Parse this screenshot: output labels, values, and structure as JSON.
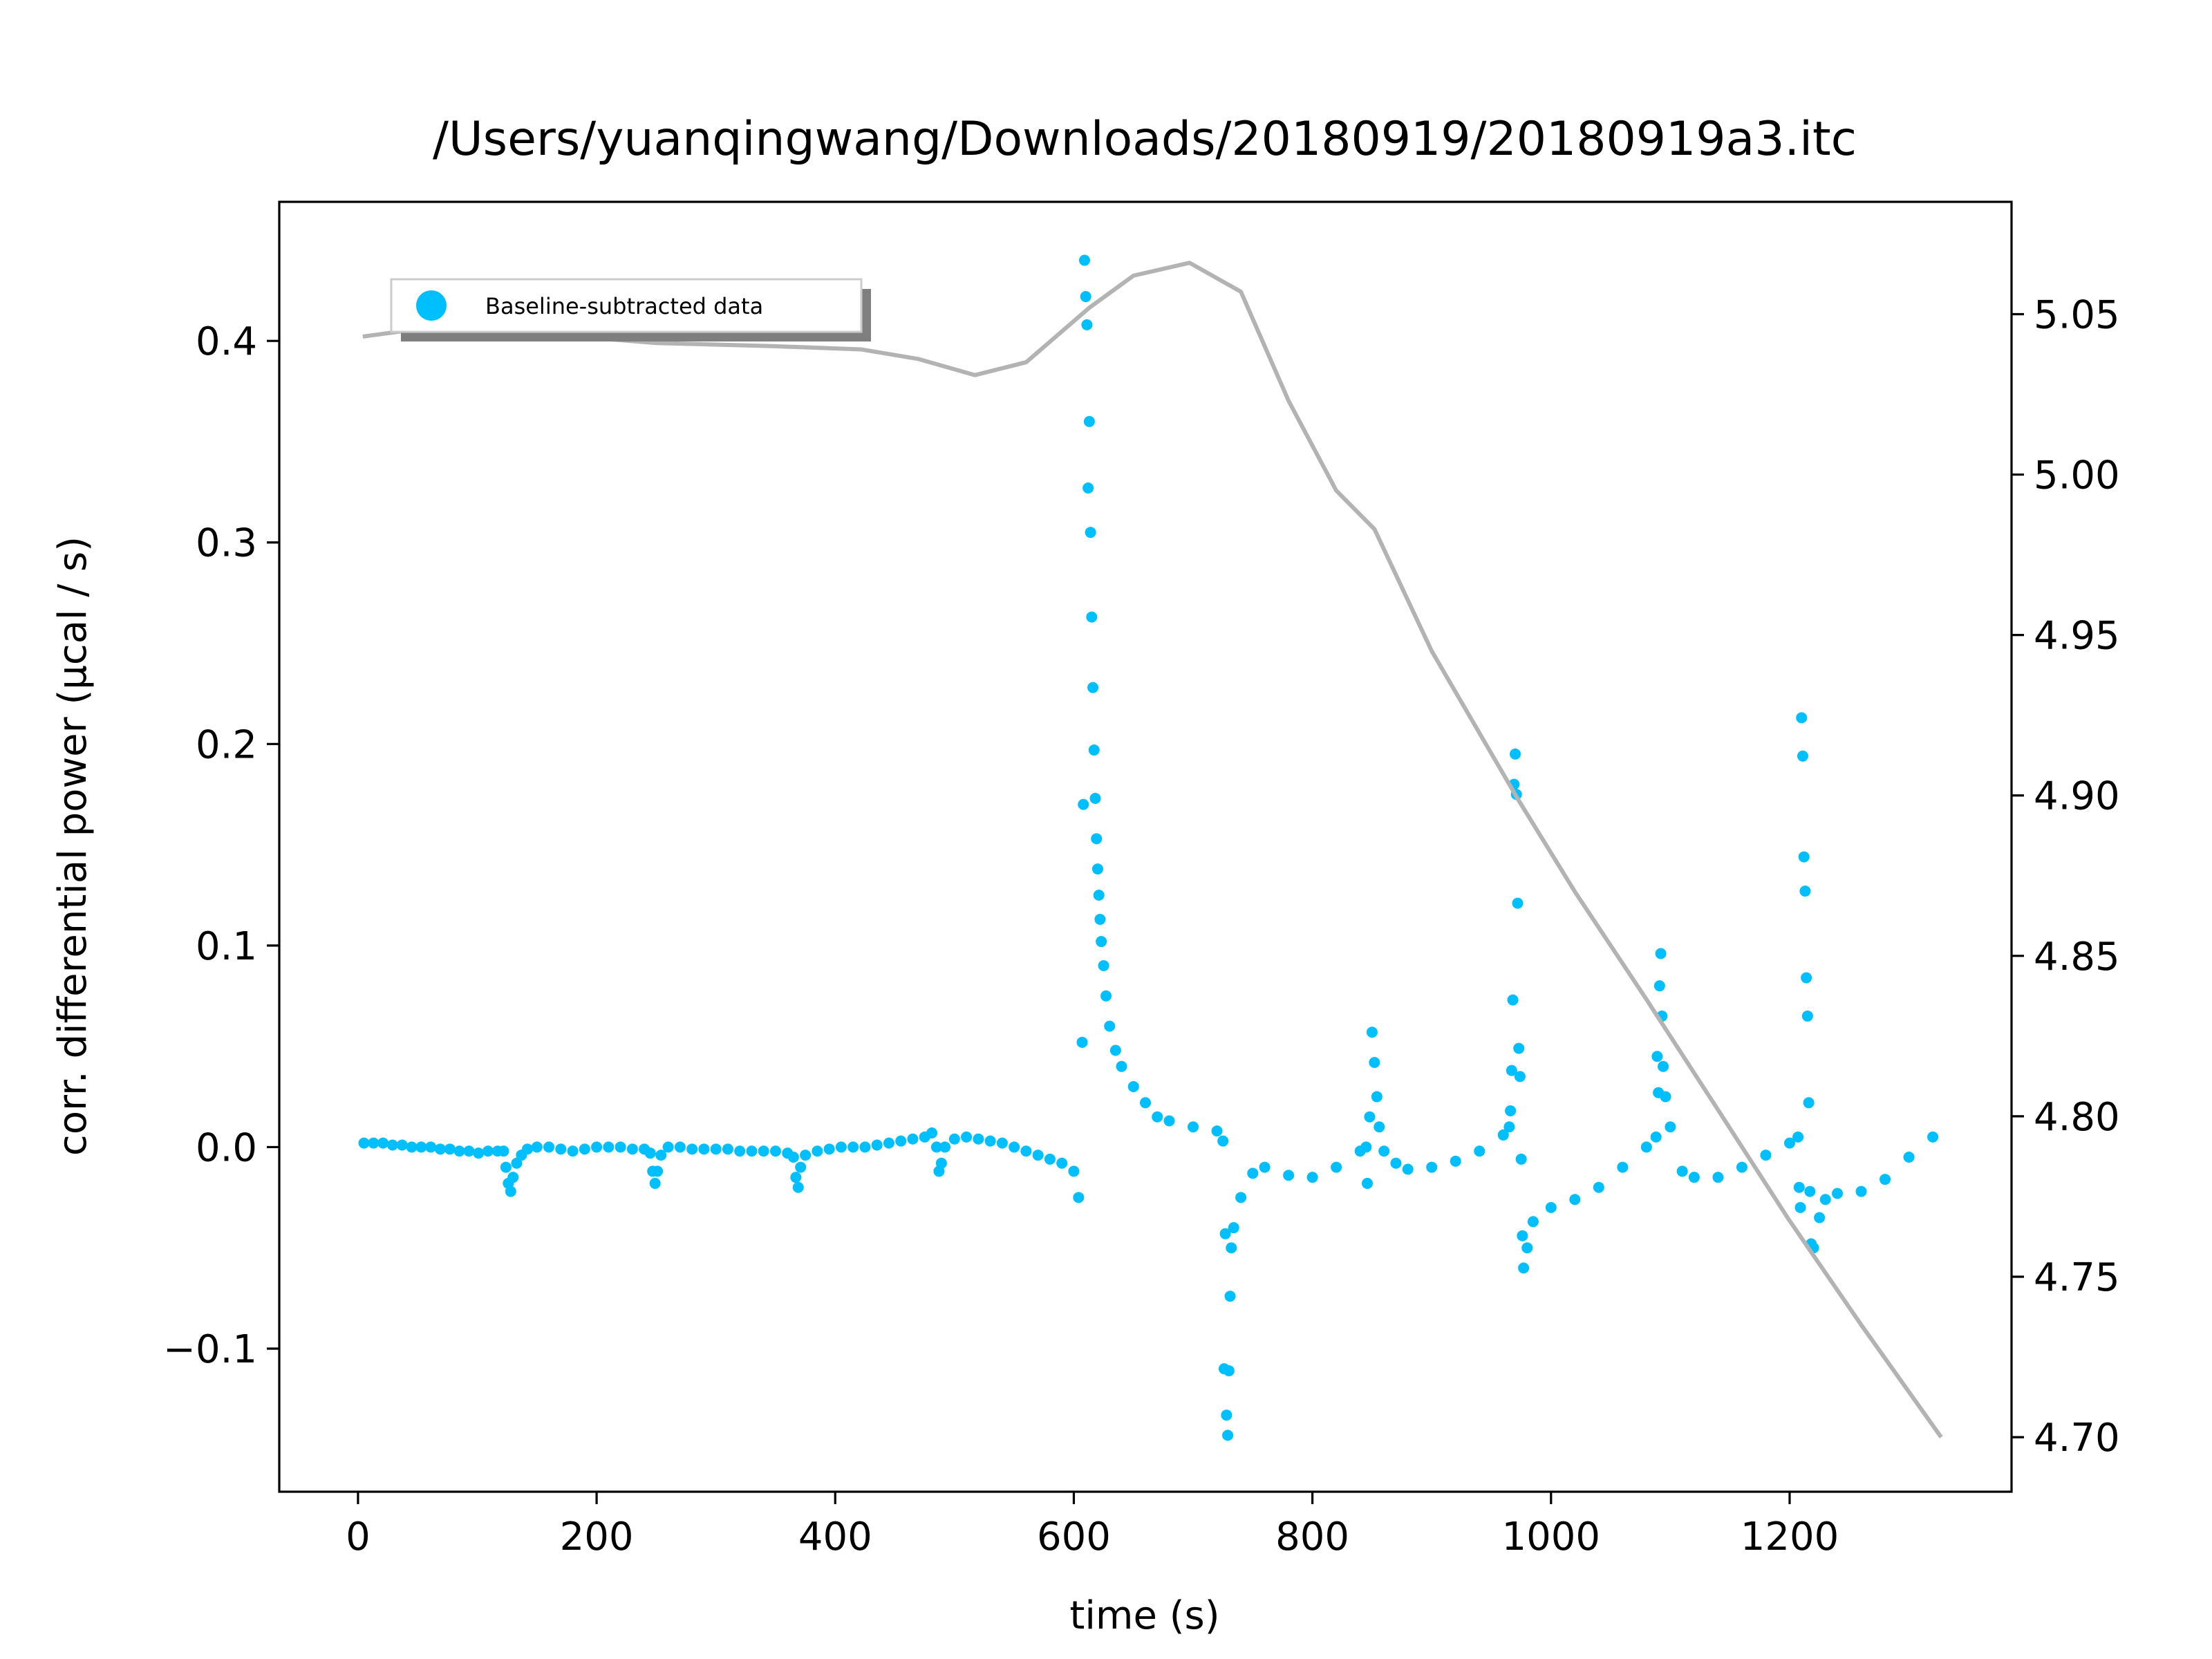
{
  "chart_data": {
    "type": "scatter",
    "title": "/Users/yuanqingwang/Downloads/20180919/20180919a3.itc",
    "xlabel": "time (s)",
    "ylabel": "corr. differential power (μcal / s)",
    "legend": "upper left",
    "xlim": [
      -66,
      1386
    ],
    "xticks": [
      0,
      200,
      400,
      600,
      800,
      1000,
      1200
    ],
    "ylim": [
      -0.171,
      0.469
    ],
    "yticks": [
      {
        "value": -0.1,
        "label": "−0.1"
      },
      {
        "value": 0,
        "label": "0.0"
      },
      0.1,
      0.2,
      0.3,
      0.4
    ],
    "y2lim": [
      4.683,
      5.085
    ],
    "y2ticks": [
      {
        "value": 4.7,
        "label": "4.70"
      },
      4.75,
      {
        "value": 4.8,
        "label": "4.80"
      },
      4.85,
      {
        "value": 4.9,
        "label": "4.90"
      },
      4.95,
      {
        "value": 5.0,
        "label": "5.00"
      },
      5.05
    ],
    "series": [
      {
        "name": "Baseline-subtracted data",
        "color": "#00bfff",
        "x": [
          5,
          13,
          21,
          29,
          37,
          45,
          53,
          61,
          69,
          77,
          85,
          93,
          101,
          109,
          117,
          122,
          124,
          126,
          128,
          130,
          133,
          137,
          142,
          150,
          160,
          170,
          180,
          190,
          200,
          210,
          220,
          230,
          240,
          245,
          247,
          249,
          251,
          254,
          260,
          270,
          280,
          290,
          300,
          310,
          320,
          330,
          340,
          350,
          360,
          365,
          367,
          369,
          371,
          375,
          385,
          395,
          405,
          415,
          425,
          435,
          445,
          455,
          465,
          475,
          481,
          485,
          487,
          489,
          492,
          500,
          510,
          520,
          530,
          540,
          550,
          560,
          570,
          580,
          590,
          600,
          604,
          607,
          608,
          609,
          610,
          611,
          612,
          613,
          614,
          615,
          616,
          617,
          618,
          619,
          620,
          621,
          622,
          623,
          625,
          627,
          630,
          635,
          640,
          650,
          660,
          670,
          680,
          700,
          720,
          725,
          726,
          727,
          728,
          729,
          730,
          731,
          732,
          734,
          740,
          750,
          760,
          780,
          800,
          820,
          840,
          845,
          846,
          848,
          850,
          852,
          854,
          856,
          860,
          870,
          880,
          900,
          920,
          940,
          960,
          965,
          966,
          967,
          968,
          969,
          970,
          971,
          972,
          973,
          974,
          975,
          976,
          977,
          980,
          985,
          1000,
          1020,
          1040,
          1060,
          1080,
          1088,
          1089,
          1090,
          1091,
          1092,
          1093,
          1094,
          1096,
          1100,
          1110,
          1120,
          1140,
          1160,
          1180,
          1200,
          1207,
          1208,
          1209,
          1210,
          1211,
          1212,
          1213,
          1214,
          1215,
          1216,
          1217,
          1218,
          1220,
          1225,
          1230,
          1240,
          1260,
          1280,
          1300,
          1320
        ],
        "values": [
          0.002,
          0.002,
          0.002,
          0.001,
          0.001,
          0.0,
          0.0,
          0.0,
          -0.001,
          -0.001,
          -0.002,
          -0.002,
          -0.003,
          -0.002,
          -0.002,
          -0.002,
          -0.01,
          -0.018,
          -0.022,
          -0.015,
          -0.008,
          -0.004,
          -0.001,
          0.0,
          0.0,
          -0.001,
          -0.002,
          -0.001,
          0.0,
          0.0,
          0.0,
          -0.001,
          -0.001,
          -0.003,
          -0.012,
          -0.018,
          -0.012,
          -0.004,
          0.0,
          0.0,
          -0.001,
          -0.001,
          -0.001,
          -0.001,
          -0.002,
          -0.002,
          -0.002,
          -0.002,
          -0.003,
          -0.005,
          -0.015,
          -0.02,
          -0.01,
          -0.004,
          -0.002,
          -0.001,
          0.0,
          0.0,
          0.0,
          0.001,
          0.002,
          0.003,
          0.004,
          0.005,
          0.007,
          0.0,
          -0.012,
          -0.008,
          0.0,
          0.004,
          0.005,
          0.004,
          0.003,
          0.002,
          0.0,
          -0.002,
          -0.004,
          -0.006,
          -0.008,
          -0.012,
          -0.025,
          0.052,
          0.17,
          0.44,
          0.422,
          0.408,
          0.327,
          0.36,
          0.305,
          0.263,
          0.228,
          0.197,
          0.173,
          0.153,
          0.138,
          0.125,
          0.113,
          0.102,
          0.09,
          0.075,
          0.06,
          0.048,
          0.04,
          0.03,
          0.022,
          0.015,
          0.013,
          0.01,
          0.008,
          0.003,
          -0.11,
          -0.043,
          -0.133,
          -0.143,
          -0.111,
          -0.074,
          -0.05,
          -0.04,
          -0.025,
          -0.013,
          -0.01,
          -0.014,
          -0.015,
          -0.01,
          -0.002,
          0.0,
          -0.018,
          0.015,
          0.057,
          0.042,
          0.025,
          0.01,
          -0.002,
          -0.008,
          -0.011,
          -0.01,
          -0.007,
          -0.002,
          0.006,
          0.01,
          0.018,
          0.038,
          0.073,
          0.18,
          0.195,
          0.175,
          0.121,
          0.049,
          0.035,
          -0.006,
          -0.044,
          -0.06,
          -0.05,
          -0.037,
          -0.03,
          -0.026,
          -0.02,
          -0.01,
          0.0,
          0.005,
          0.045,
          0.027,
          0.08,
          0.096,
          0.065,
          0.04,
          0.025,
          0.01,
          -0.012,
          -0.015,
          -0.015,
          -0.01,
          -0.004,
          0.002,
          0.005,
          -0.02,
          -0.03,
          0.213,
          0.194,
          0.144,
          0.127,
          0.084,
          0.065,
          0.022,
          -0.022,
          -0.048,
          -0.05,
          -0.035,
          -0.026,
          -0.023,
          -0.022,
          -0.016,
          -0.005,
          0.005
        ]
      },
      {
        "type": "line",
        "axis": "y2",
        "color": "#b3b3b3",
        "x": [
          4,
          63,
          150,
          250,
          350,
          422,
          470,
          517,
          560,
          613,
          650,
          697,
          740,
          780,
          820,
          852,
          900,
          972,
          1020,
          1079,
          1140,
          1199,
          1260,
          1327
        ],
        "values": [
          5.043,
          5.046,
          5.044,
          5.041,
          5.04,
          5.039,
          5.036,
          5.031,
          5.035,
          5.052,
          5.062,
          5.066,
          5.057,
          5.023,
          4.995,
          4.983,
          4.945,
          4.899,
          4.87,
          4.837,
          4.802,
          4.768,
          4.735,
          4.7
        ]
      }
    ]
  }
}
